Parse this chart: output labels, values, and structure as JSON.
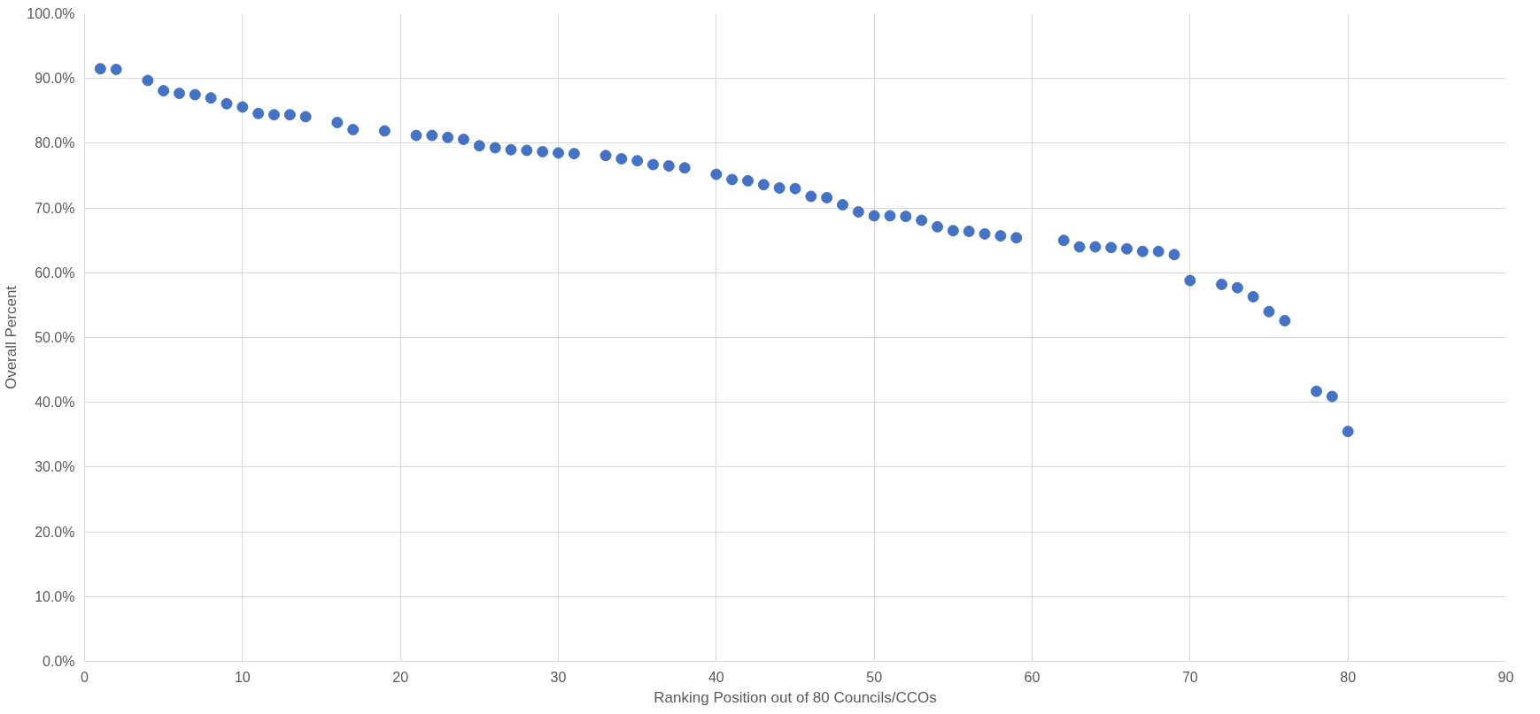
{
  "chart_data": {
    "type": "scatter",
    "xlabel": "Ranking Position out of 80 Councils/CCOs",
    "ylabel": "Overall Percent",
    "x": [
      1,
      2,
      4,
      5,
      6,
      7,
      8,
      9,
      10,
      11,
      12,
      13,
      14,
      16,
      17,
      19,
      21,
      22,
      23,
      24,
      25,
      26,
      27,
      28,
      29,
      30,
      31,
      33,
      34,
      35,
      36,
      37,
      38,
      40,
      41,
      42,
      43,
      44,
      45,
      46,
      47,
      48,
      49,
      50,
      51,
      52,
      53,
      54,
      55,
      56,
      57,
      58,
      59,
      62,
      63,
      64,
      65,
      66,
      67,
      68,
      69,
      70,
      72,
      73,
      74,
      75,
      76,
      78,
      79,
      80
    ],
    "series": [
      {
        "color": "#4472c4",
        "values": [
          91.5,
          91.4,
          89.7,
          88.1,
          87.7,
          87.5,
          87.0,
          86.1,
          85.6,
          84.6,
          84.4,
          84.4,
          84.1,
          83.2,
          82.1,
          81.9,
          81.2,
          81.2,
          80.9,
          80.6,
          79.6,
          79.3,
          79.0,
          78.9,
          78.7,
          78.5,
          78.4,
          78.1,
          77.6,
          77.3,
          76.7,
          76.5,
          76.2,
          75.2,
          74.4,
          74.2,
          73.6,
          73.1,
          73.0,
          71.8,
          71.6,
          70.5,
          69.4,
          68.8,
          68.8,
          68.7,
          68.1,
          67.1,
          66.5,
          66.4,
          66.0,
          65.7,
          65.4,
          65.0,
          64.0,
          64.0,
          63.9,
          63.7,
          63.3,
          63.3,
          62.8,
          58.8,
          58.2,
          57.7,
          56.3,
          54.0,
          52.6,
          41.7,
          40.9,
          35.5
        ]
      }
    ],
    "xlim": [
      0,
      90
    ],
    "xticks": [
      0,
      10,
      20,
      30,
      40,
      50,
      60,
      70,
      80,
      90
    ],
    "ylim": [
      0,
      100
    ],
    "yticks": [
      {
        "value": 0,
        "label": "0.0%"
      },
      {
        "value": 10,
        "label": "10.0%"
      },
      {
        "value": 20,
        "label": "20.0%"
      },
      {
        "value": 30,
        "label": "30.0%"
      },
      {
        "value": 40,
        "label": "40.0%"
      },
      {
        "value": 50,
        "label": "50.0%"
      },
      {
        "value": 60,
        "label": "60.0%"
      },
      {
        "value": 70,
        "label": "70.0%"
      },
      {
        "value": 80,
        "label": "80.0%"
      },
      {
        "value": 90,
        "label": "90.0%"
      },
      {
        "value": 100,
        "label": "100.0%"
      }
    ],
    "grid": true,
    "marker": "circle"
  }
}
